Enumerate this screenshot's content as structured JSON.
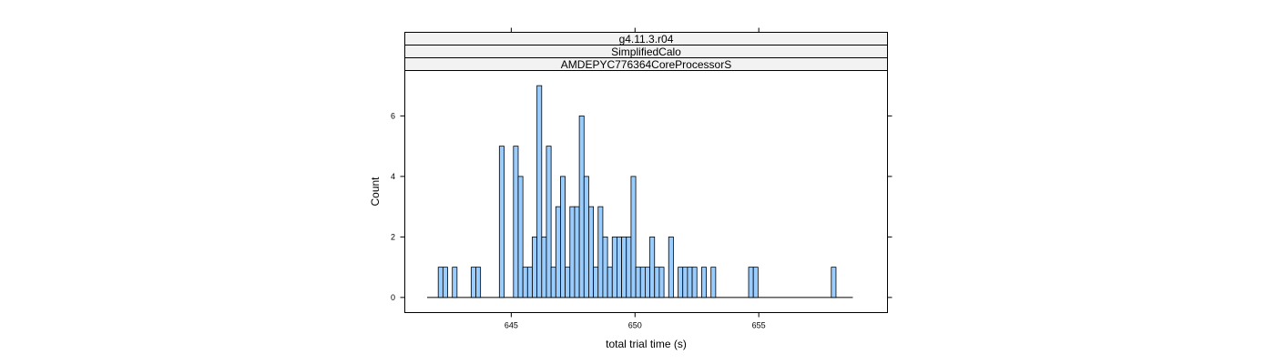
{
  "chart_data": {
    "type": "bar",
    "strips": [
      "g4.11.3.r04",
      "SimplifiedCalo",
      "AMDEPYC776364CoreProcessorS"
    ],
    "xlabel": "total trial time (s)",
    "ylabel": "Count",
    "xlim": [
      640.7,
      660.2
    ],
    "ylim": [
      -0.5,
      7.5
    ],
    "x_ticks": [
      645,
      650,
      655
    ],
    "y_ticks": [
      0,
      2,
      4,
      6
    ],
    "baseline": [
      641.6,
      658.8
    ],
    "bin_width": 0.19,
    "bin_starts": [
      642.05,
      642.24,
      642.62,
      643.38,
      643.57,
      644.52,
      645.09,
      645.28,
      645.47,
      645.66,
      645.85,
      646.04,
      646.23,
      646.42,
      646.61,
      646.8,
      646.99,
      647.18,
      647.37,
      647.56,
      647.75,
      647.94,
      648.13,
      648.32,
      648.51,
      648.7,
      648.89,
      649.08,
      649.27,
      649.46,
      649.65,
      649.84,
      650.03,
      650.22,
      650.41,
      650.6,
      650.79,
      650.98,
      651.36,
      651.74,
      651.93,
      652.12,
      652.31,
      652.69,
      653.07,
      654.59,
      654.78,
      657.93
    ],
    "values": [
      1,
      1,
      1,
      1,
      1,
      5,
      5,
      4,
      1,
      1,
      2,
      7,
      2,
      5,
      1,
      3,
      4,
      1,
      3,
      3,
      6,
      4,
      3,
      1,
      3,
      2,
      1,
      2,
      2,
      2,
      2,
      4,
      1,
      1,
      1,
      2,
      1,
      1,
      2,
      1,
      1,
      1,
      1,
      1,
      1,
      1,
      1,
      1
    ],
    "grid": false,
    "colors": {
      "bar_fill": "#99CCFF",
      "bar_stroke": "#000000",
      "strip_fill": "#F2F2F2",
      "frame": "#000000"
    }
  }
}
